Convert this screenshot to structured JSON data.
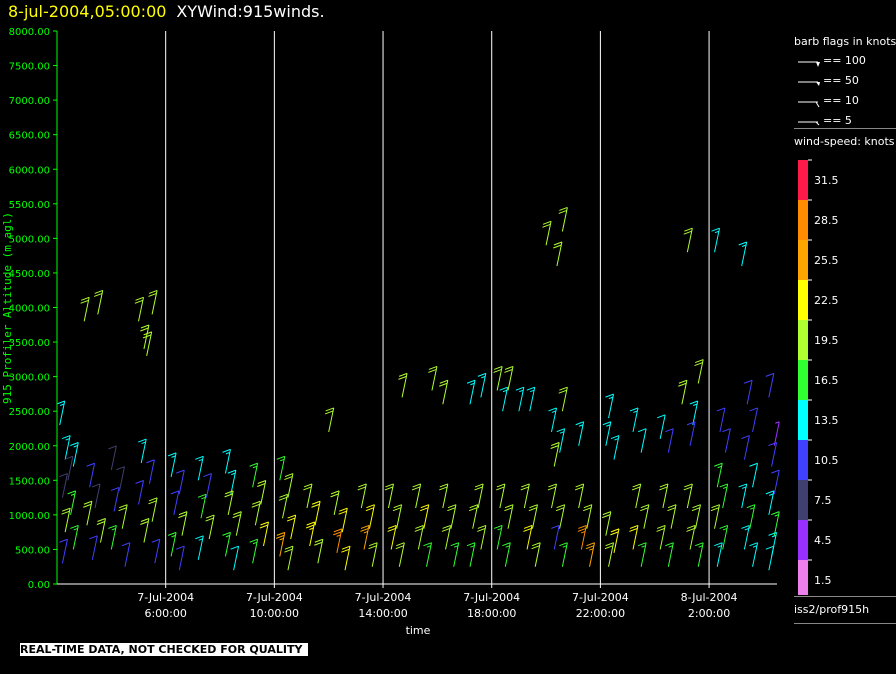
{
  "title": {
    "date": "8-jul-2004,05:00:00",
    "main": "XYWind:915winds."
  },
  "qc_note": "REAL-TIME DATA, NOT CHECKED FOR QUALITY",
  "station": "iss2/prof915h",
  "barb_legend": {
    "title": "barb flags in knots",
    "items": [
      "== 100",
      "== 50",
      "== 10",
      "== 5"
    ]
  },
  "speed_legend": {
    "title": "wind-speed: knots",
    "levels": [
      "31.5",
      "28.5",
      "25.5",
      "22.5",
      "19.5",
      "16.5",
      "13.5",
      "10.5",
      "7.5",
      "4.5",
      "1.5"
    ],
    "colors": [
      "#ff1a4a",
      "#ff8c00",
      "#ffa500",
      "#ffff00",
      "#b0ff30",
      "#30ff30",
      "#00ffff",
      "#4040ff",
      "#404070",
      "#9a30ff",
      "#ee80ee"
    ]
  },
  "colors": {
    "axis": "#00ff00",
    "grid": "#ffffff",
    "frame": "#ffffff"
  },
  "chart_data": {
    "type": "scatter",
    "title": "",
    "xlabel": "time",
    "ylabel": "915 Profiler Altitude (m agl)",
    "ylim": [
      0,
      8000
    ],
    "xlim_hours": [
      2.0,
      28.5
    ],
    "y_ticks": [
      "0.00",
      "500.00",
      "1000.00",
      "1500.00",
      "2000.00",
      "2500.00",
      "3000.00",
      "3500.00",
      "4000.00",
      "4500.00",
      "5000.00",
      "5500.00",
      "6000.00",
      "6500.00",
      "7000.00",
      "7500.00",
      "8000.00"
    ],
    "x_ticks": [
      {
        "date": "7-Jul-2004",
        "time": "6:00:00",
        "hour": 6
      },
      {
        "date": "7-Jul-2004",
        "time": "10:00:00",
        "hour": 10
      },
      {
        "date": "7-Jul-2004",
        "time": "14:00:00",
        "hour": 14
      },
      {
        "date": "7-Jul-2004",
        "time": "18:00:00",
        "hour": 18
      },
      {
        "date": "7-Jul-2004",
        "time": "22:00:00",
        "hour": 22
      },
      {
        "date": "8-Jul-2004",
        "time": "2:00:00",
        "hour": 26
      }
    ],
    "grid": true,
    "wind_barbs": [
      {
        "t": 2.1,
        "z": 2300,
        "s": 14
      },
      {
        "t": 2.3,
        "z": 1800,
        "s": 13
      },
      {
        "t": 2.6,
        "z": 1700,
        "s": 13
      },
      {
        "t": 2.4,
        "z": 1500,
        "s": 8
      },
      {
        "t": 2.2,
        "z": 1250,
        "s": 8
      },
      {
        "t": 2.5,
        "z": 1000,
        "s": 17
      },
      {
        "t": 2.3,
        "z": 750,
        "s": 18
      },
      {
        "t": 2.6,
        "z": 500,
        "s": 15
      },
      {
        "t": 2.2,
        "z": 300,
        "s": 10
      },
      {
        "t": 3.0,
        "z": 3800,
        "s": 20
      },
      {
        "t": 3.5,
        "z": 3900,
        "s": 20
      },
      {
        "t": 3.2,
        "z": 1400,
        "s": 10
      },
      {
        "t": 3.4,
        "z": 1100,
        "s": 8
      },
      {
        "t": 3.1,
        "z": 850,
        "s": 18
      },
      {
        "t": 3.6,
        "z": 600,
        "s": 19
      },
      {
        "t": 3.3,
        "z": 350,
        "s": 11
      },
      {
        "t": 4.0,
        "z": 1650,
        "s": 8
      },
      {
        "t": 4.3,
        "z": 1350,
        "s": 8
      },
      {
        "t": 4.1,
        "z": 1050,
        "s": 9
      },
      {
        "t": 4.4,
        "z": 800,
        "s": 19
      },
      {
        "t": 4.0,
        "z": 500,
        "s": 17
      },
      {
        "t": 4.5,
        "z": 250,
        "s": 10
      },
      {
        "t": 5.0,
        "z": 3800,
        "s": 20
      },
      {
        "t": 5.2,
        "z": 3400,
        "s": 20
      },
      {
        "t": 5.5,
        "z": 3900,
        "s": 20
      },
      {
        "t": 5.3,
        "z": 3300,
        "s": 20
      },
      {
        "t": 5.1,
        "z": 1750,
        "s": 13
      },
      {
        "t": 5.4,
        "z": 1450,
        "s": 9
      },
      {
        "t": 5.0,
        "z": 1150,
        "s": 9
      },
      {
        "t": 5.5,
        "z": 900,
        "s": 19
      },
      {
        "t": 5.2,
        "z": 600,
        "s": 18
      },
      {
        "t": 5.6,
        "z": 300,
        "s": 10
      },
      {
        "t": 6.2,
        "z": 1550,
        "s": 14
      },
      {
        "t": 6.5,
        "z": 1300,
        "s": 9
      },
      {
        "t": 6.3,
        "z": 1000,
        "s": 9
      },
      {
        "t": 6.6,
        "z": 700,
        "s": 18
      },
      {
        "t": 6.2,
        "z": 400,
        "s": 16
      },
      {
        "t": 6.5,
        "z": 200,
        "s": 10
      },
      {
        "t": 7.2,
        "z": 1500,
        "s": 14
      },
      {
        "t": 7.5,
        "z": 1250,
        "s": 11
      },
      {
        "t": 7.3,
        "z": 950,
        "s": 17
      },
      {
        "t": 7.6,
        "z": 650,
        "s": 19
      },
      {
        "t": 7.2,
        "z": 350,
        "s": 14
      },
      {
        "t": 8.2,
        "z": 1600,
        "s": 14
      },
      {
        "t": 8.4,
        "z": 1300,
        "s": 14
      },
      {
        "t": 8.3,
        "z": 1000,
        "s": 18
      },
      {
        "t": 8.6,
        "z": 700,
        "s": 19
      },
      {
        "t": 8.2,
        "z": 400,
        "s": 17
      },
      {
        "t": 8.5,
        "z": 200,
        "s": 12
      },
      {
        "t": 9.2,
        "z": 1400,
        "s": 15
      },
      {
        "t": 9.5,
        "z": 1150,
        "s": 18
      },
      {
        "t": 9.3,
        "z": 850,
        "s": 19
      },
      {
        "t": 9.6,
        "z": 550,
        "s": 21
      },
      {
        "t": 9.2,
        "z": 300,
        "s": 17
      },
      {
        "t": 10.2,
        "z": 1500,
        "s": 17
      },
      {
        "t": 10.5,
        "z": 1250,
        "s": 18
      },
      {
        "t": 10.3,
        "z": 950,
        "s": 19
      },
      {
        "t": 10.6,
        "z": 650,
        "s": 22
      },
      {
        "t": 10.2,
        "z": 400,
        "s": 26
      },
      {
        "t": 10.5,
        "z": 200,
        "s": 20
      },
      {
        "t": 11.2,
        "z": 1100,
        "s": 19
      },
      {
        "t": 11.5,
        "z": 850,
        "s": 21
      },
      {
        "t": 11.3,
        "z": 550,
        "s": 23
      },
      {
        "t": 11.6,
        "z": 300,
        "s": 20
      },
      {
        "t": 12.0,
        "z": 2200,
        "s": 18
      },
      {
        "t": 12.2,
        "z": 1000,
        "s": 19
      },
      {
        "t": 12.5,
        "z": 750,
        "s": 22
      },
      {
        "t": 12.3,
        "z": 450,
        "s": 27
      },
      {
        "t": 12.6,
        "z": 200,
        "s": 21
      },
      {
        "t": 13.2,
        "z": 1100,
        "s": 19
      },
      {
        "t": 13.5,
        "z": 800,
        "s": 21
      },
      {
        "t": 13.3,
        "z": 500,
        "s": 26
      },
      {
        "t": 13.6,
        "z": 250,
        "s": 20
      },
      {
        "t": 14.2,
        "z": 1100,
        "s": 19
      },
      {
        "t": 14.5,
        "z": 800,
        "s": 20
      },
      {
        "t": 14.3,
        "z": 500,
        "s": 22
      },
      {
        "t": 14.6,
        "z": 250,
        "s": 18
      },
      {
        "t": 14.7,
        "z": 2700,
        "s": 20
      },
      {
        "t": 15.8,
        "z": 2800,
        "s": 20
      },
      {
        "t": 16.2,
        "z": 2600,
        "s": 20
      },
      {
        "t": 15.2,
        "z": 1100,
        "s": 19
      },
      {
        "t": 15.5,
        "z": 800,
        "s": 21
      },
      {
        "t": 15.3,
        "z": 500,
        "s": 19
      },
      {
        "t": 15.6,
        "z": 250,
        "s": 17
      },
      {
        "t": 16.2,
        "z": 1100,
        "s": 20
      },
      {
        "t": 16.5,
        "z": 800,
        "s": 19
      },
      {
        "t": 16.3,
        "z": 500,
        "s": 18
      },
      {
        "t": 16.6,
        "z": 250,
        "s": 16
      },
      {
        "t": 17.2,
        "z": 2600,
        "s": 14
      },
      {
        "t": 17.6,
        "z": 2700,
        "s": 13
      },
      {
        "t": 17.5,
        "z": 1100,
        "s": 19
      },
      {
        "t": 17.3,
        "z": 800,
        "s": 20
      },
      {
        "t": 17.6,
        "z": 500,
        "s": 18
      },
      {
        "t": 17.2,
        "z": 250,
        "s": 16
      },
      {
        "t": 18.2,
        "z": 2800,
        "s": 19
      },
      {
        "t": 18.4,
        "z": 2500,
        "s": 14
      },
      {
        "t": 18.6,
        "z": 2800,
        "s": 19
      },
      {
        "t": 18.3,
        "z": 1100,
        "s": 19
      },
      {
        "t": 18.6,
        "z": 800,
        "s": 20
      },
      {
        "t": 18.2,
        "z": 500,
        "s": 17
      },
      {
        "t": 18.5,
        "z": 250,
        "s": 16
      },
      {
        "t": 19.0,
        "z": 2500,
        "s": 13
      },
      {
        "t": 19.4,
        "z": 2500,
        "s": 14
      },
      {
        "t": 19.2,
        "z": 1100,
        "s": 18
      },
      {
        "t": 19.5,
        "z": 800,
        "s": 20
      },
      {
        "t": 19.3,
        "z": 500,
        "s": 21
      },
      {
        "t": 19.6,
        "z": 250,
        "s": 18
      },
      {
        "t": 20.0,
        "z": 4900,
        "s": 19
      },
      {
        "t": 20.4,
        "z": 4600,
        "s": 18
      },
      {
        "t": 20.6,
        "z": 5100,
        "s": 20
      },
      {
        "t": 20.2,
        "z": 2200,
        "s": 14
      },
      {
        "t": 20.5,
        "z": 1900,
        "s": 14
      },
      {
        "t": 20.3,
        "z": 1700,
        "s": 18
      },
      {
        "t": 20.6,
        "z": 2500,
        "s": 19
      },
      {
        "t": 20.2,
        "z": 1100,
        "s": 18
      },
      {
        "t": 20.5,
        "z": 800,
        "s": 20
      },
      {
        "t": 20.3,
        "z": 500,
        "s": 10
      },
      {
        "t": 20.6,
        "z": 250,
        "s": 15
      },
      {
        "t": 21.2,
        "z": 2000,
        "s": 14
      },
      {
        "t": 21.2,
        "z": 1100,
        "s": 18
      },
      {
        "t": 21.5,
        "z": 800,
        "s": 20
      },
      {
        "t": 21.3,
        "z": 500,
        "s": 27
      },
      {
        "t": 21.6,
        "z": 250,
        "s": 25
      },
      {
        "t": 22.2,
        "z": 2000,
        "s": 13
      },
      {
        "t": 22.5,
        "z": 1800,
        "s": 13
      },
      {
        "t": 22.3,
        "z": 2400,
        "s": 14
      },
      {
        "t": 22.2,
        "z": 700,
        "s": 19
      },
      {
        "t": 22.5,
        "z": 450,
        "s": 22
      },
      {
        "t": 22.3,
        "z": 250,
        "s": 18
      },
      {
        "t": 23.2,
        "z": 2200,
        "s": 13
      },
      {
        "t": 23.5,
        "z": 1900,
        "s": 12
      },
      {
        "t": 23.3,
        "z": 1100,
        "s": 18
      },
      {
        "t": 23.6,
        "z": 800,
        "s": 20
      },
      {
        "t": 23.2,
        "z": 500,
        "s": 22
      },
      {
        "t": 23.5,
        "z": 250,
        "s": 17
      },
      {
        "t": 24.2,
        "z": 2100,
        "s": 12
      },
      {
        "t": 24.5,
        "z": 1900,
        "s": 11
      },
      {
        "t": 24.3,
        "z": 1100,
        "s": 18
      },
      {
        "t": 24.6,
        "z": 800,
        "s": 20
      },
      {
        "t": 24.2,
        "z": 500,
        "s": 19
      },
      {
        "t": 24.5,
        "z": 250,
        "s": 16
      },
      {
        "t": 25.2,
        "z": 4800,
        "s": 19
      },
      {
        "t": 25.0,
        "z": 2600,
        "s": 18
      },
      {
        "t": 25.4,
        "z": 2300,
        "s": 13
      },
      {
        "t": 25.3,
        "z": 2000,
        "s": 11
      },
      {
        "t": 25.6,
        "z": 2900,
        "s": 19
      },
      {
        "t": 25.2,
        "z": 1100,
        "s": 18
      },
      {
        "t": 25.5,
        "z": 800,
        "s": 20
      },
      {
        "t": 25.3,
        "z": 500,
        "s": 18
      },
      {
        "t": 25.6,
        "z": 250,
        "s": 15
      },
      {
        "t": 26.2,
        "z": 4800,
        "s": 14
      },
      {
        "t": 26.4,
        "z": 2200,
        "s": 11
      },
      {
        "t": 26.6,
        "z": 1900,
        "s": 10
      },
      {
        "t": 26.3,
        "z": 1400,
        "s": 16
      },
      {
        "t": 26.5,
        "z": 1100,
        "s": 16
      },
      {
        "t": 26.2,
        "z": 800,
        "s": 18
      },
      {
        "t": 26.5,
        "z": 500,
        "s": 15
      },
      {
        "t": 26.3,
        "z": 250,
        "s": 13
      },
      {
        "t": 27.2,
        "z": 4600,
        "s": 14
      },
      {
        "t": 27.4,
        "z": 2600,
        "s": 10
      },
      {
        "t": 27.6,
        "z": 2200,
        "s": 9
      },
      {
        "t": 27.3,
        "z": 1800,
        "s": 10
      },
      {
        "t": 27.6,
        "z": 1400,
        "s": 12
      },
      {
        "t": 27.2,
        "z": 1100,
        "s": 14
      },
      {
        "t": 27.5,
        "z": 800,
        "s": 16
      },
      {
        "t": 27.3,
        "z": 500,
        "s": 14
      },
      {
        "t": 27.6,
        "z": 250,
        "s": 13
      },
      {
        "t": 28.2,
        "z": 2700,
        "s": 10
      },
      {
        "t": 28.4,
        "z": 2000,
        "s": 4
      },
      {
        "t": 28.3,
        "z": 1700,
        "s": 10
      },
      {
        "t": 28.4,
        "z": 1300,
        "s": 10
      },
      {
        "t": 28.2,
        "z": 1000,
        "s": 13
      },
      {
        "t": 28.4,
        "z": 700,
        "s": 15
      },
      {
        "t": 28.3,
        "z": 400,
        "s": 13
      },
      {
        "t": 28.2,
        "z": 200,
        "s": 12
      }
    ]
  }
}
